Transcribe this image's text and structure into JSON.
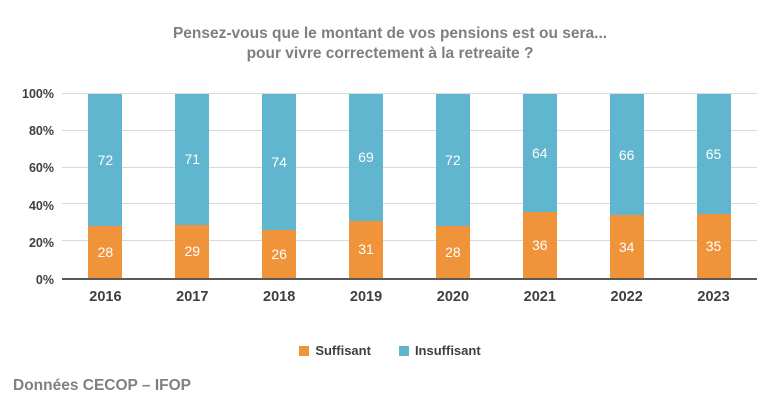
{
  "title": {
    "line1": "Pensez-vous que le montant de vos pensions est ou sera...",
    "line2": "pour vivre correctement à la retreaite ?"
  },
  "chart_data": {
    "type": "bar",
    "stacked": true,
    "title": "Pensez-vous que le montant de vos pensions est ou sera... pour vivre correctement à la retreaite ?",
    "categories": [
      "2016",
      "2017",
      "2018",
      "2019",
      "2020",
      "2021",
      "2022",
      "2023"
    ],
    "series": [
      {
        "name": "Suffisant",
        "color": "#F0943C",
        "values": [
          28,
          29,
          26,
          31,
          28,
          36,
          34,
          35
        ]
      },
      {
        "name": "Insuffisant",
        "color": "#5FB6CE",
        "values": [
          72,
          71,
          74,
          69,
          72,
          64,
          66,
          65
        ]
      }
    ],
    "ylim": [
      0,
      100
    ],
    "yticks": [
      0,
      20,
      40,
      60,
      80,
      100
    ],
    "ytick_suffix": "%",
    "grid": true,
    "value_labels": "inside-center",
    "legend_position": "bottom"
  },
  "footer": {
    "text": "Données CECOP – IFOP"
  },
  "colors": {
    "suffisant": "#F0943C",
    "insuffisant": "#5FB6CE",
    "title_text": "#7f7f7f",
    "axis_text": "#404040",
    "gridline": "#d9d9d9",
    "axis_line": "#595959",
    "background": "#ffffff"
  }
}
